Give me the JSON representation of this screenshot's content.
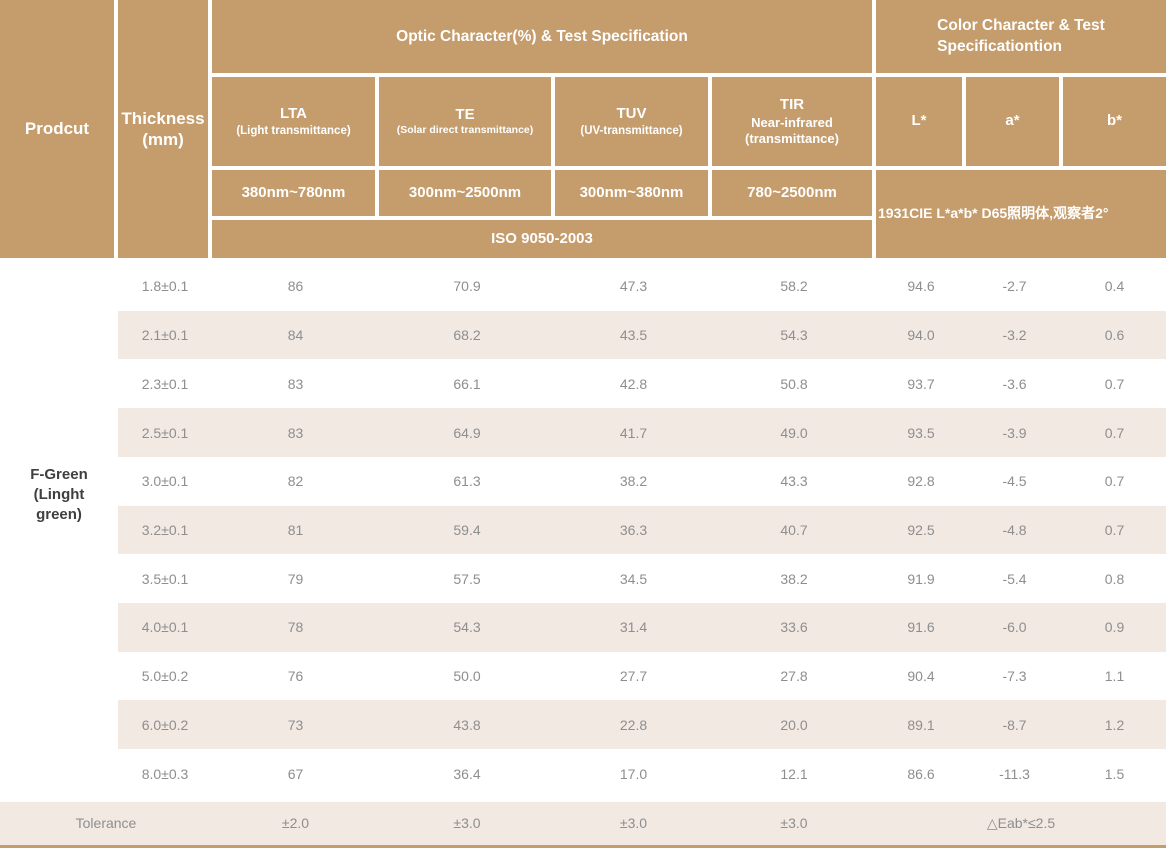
{
  "colors": {
    "header_bg": "#c59c6c",
    "stripe_bg": "#f2e9e3",
    "header_text": "#ffffff",
    "data_text": "#8e8e8e",
    "product_text": "#3f3f3f"
  },
  "header": {
    "product_label": "Prodcut",
    "thickness_label_line1": "Thickness",
    "thickness_label_line2": "(mm)",
    "optic_group_label": "Optic Character(%) & Test Specification",
    "color_group_label_line1": "Color Character & Test",
    "color_group_label_line2": "Specificationtion",
    "lta_name": "LTA",
    "lta_sub": "(Light transmittance)",
    "lta_range": "380nm~780nm",
    "te_name": "TE",
    "te_sub": "(Solar direct transmittance)",
    "te_range": "300nm~2500nm",
    "tuv_name": "TUV",
    "tuv_sub": "(UV-transmittance)",
    "tuv_range": "300nm~380nm",
    "tir_name": "TIR",
    "tir_sub_line1": "Near-infrared",
    "tir_sub_line2": "(transmittance)",
    "tir_range": "780~2500nm",
    "l_label": "L*",
    "a_label": "a*",
    "b_label": "b*",
    "iso_standard": "ISO 9050-2003",
    "cie_standard": "1931CIE L*a*b*  D65照明体,观察者2°"
  },
  "product": {
    "name_line1": "F-Green",
    "name_line2": "(Linght",
    "name_line3": "green)"
  },
  "rows": [
    {
      "thickness": "1.8±0.1",
      "lta": "86",
      "te": "70.9",
      "tuv": "47.3",
      "tir": "58.2",
      "l": "94.6",
      "a": "-2.7",
      "b": "0.4"
    },
    {
      "thickness": "2.1±0.1",
      "lta": "84",
      "te": "68.2",
      "tuv": "43.5",
      "tir": "54.3",
      "l": "94.0",
      "a": "-3.2",
      "b": "0.6"
    },
    {
      "thickness": "2.3±0.1",
      "lta": "83",
      "te": "66.1",
      "tuv": "42.8",
      "tir": "50.8",
      "l": "93.7",
      "a": "-3.6",
      "b": "0.7"
    },
    {
      "thickness": "2.5±0.1",
      "lta": "83",
      "te": "64.9",
      "tuv": "41.7",
      "tir": "49.0",
      "l": "93.5",
      "a": "-3.9",
      "b": "0.7"
    },
    {
      "thickness": "3.0±0.1",
      "lta": "82",
      "te": "61.3",
      "tuv": "38.2",
      "tir": "43.3",
      "l": "92.8",
      "a": "-4.5",
      "b": "0.7"
    },
    {
      "thickness": "3.2±0.1",
      "lta": "81",
      "te": "59.4",
      "tuv": "36.3",
      "tir": "40.7",
      "l": "92.5",
      "a": "-4.8",
      "b": "0.7"
    },
    {
      "thickness": "3.5±0.1",
      "lta": "79",
      "te": "57.5",
      "tuv": "34.5",
      "tir": "38.2",
      "l": "91.9",
      "a": "-5.4",
      "b": "0.8"
    },
    {
      "thickness": "4.0±0.1",
      "lta": "78",
      "te": "54.3",
      "tuv": "31.4",
      "tir": "33.6",
      "l": "91.6",
      "a": "-6.0",
      "b": "0.9"
    },
    {
      "thickness": "5.0±0.2",
      "lta": "76",
      "te": "50.0",
      "tuv": "27.7",
      "tir": "27.8",
      "l": "90.4",
      "a": "-7.3",
      "b": "1.1"
    },
    {
      "thickness": "6.0±0.2",
      "lta": "73",
      "te": "43.8",
      "tuv": "22.8",
      "tir": "20.0",
      "l": "89.1",
      "a": "-8.7",
      "b": "1.2"
    },
    {
      "thickness": "8.0±0.3",
      "lta": "67",
      "te": "36.4",
      "tuv": "17.0",
      "tir": "12.1",
      "l": "86.6",
      "a": "-11.3",
      "b": "1.5"
    }
  ],
  "tolerance": {
    "label": "Tolerance",
    "lta": "±2.0",
    "te": "±3.0",
    "tuv": "±3.0",
    "tir": "±3.0",
    "eab": "△Eab*≤2.5"
  }
}
